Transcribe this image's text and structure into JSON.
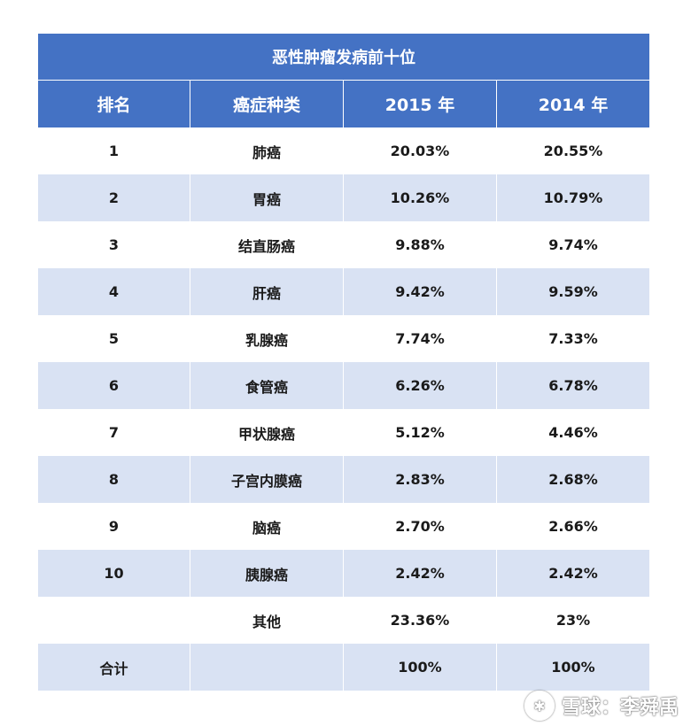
{
  "table": {
    "title": "恶性肿瘤发病前十位",
    "headers": [
      "排名",
      "癌症种类",
      "2015 年",
      "2014 年"
    ],
    "rows": [
      [
        "1",
        "肺癌",
        "20.03%",
        "20.55%"
      ],
      [
        "2",
        "胃癌",
        "10.26%",
        "10.79%"
      ],
      [
        "3",
        "结直肠癌",
        "9.88%",
        "9.74%"
      ],
      [
        "4",
        "肝癌",
        "9.42%",
        "9.59%"
      ],
      [
        "5",
        "乳腺癌",
        "7.74%",
        "7.33%"
      ],
      [
        "6",
        "食管癌",
        "6.26%",
        "6.78%"
      ],
      [
        "7",
        "甲状腺癌",
        "5.12%",
        "4.46%"
      ],
      [
        "8",
        "子宫内膜癌",
        "2.83%",
        "2.68%"
      ],
      [
        "9",
        "脑癌",
        "2.70%",
        "2.66%"
      ],
      [
        "10",
        "胰腺癌",
        "2.42%",
        "2.42%"
      ],
      [
        "",
        "其他",
        "23.36%",
        "23%"
      ],
      [
        "合计",
        "",
        "100%",
        "100%"
      ]
    ]
  },
  "watermark": {
    "text": "雪球：李舜禹",
    "icon": "xueqiu-logo-icon"
  }
}
